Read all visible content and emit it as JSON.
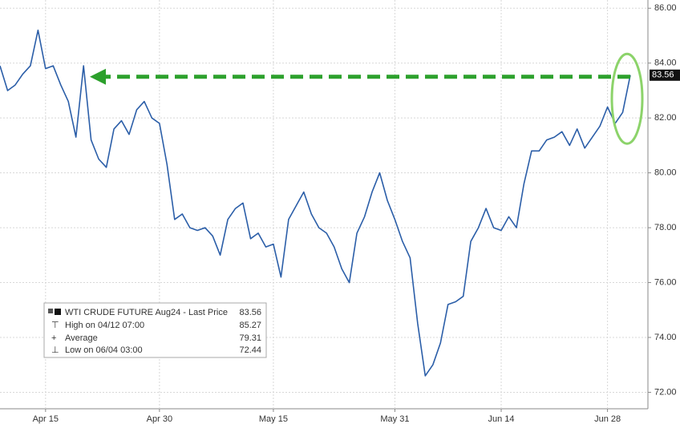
{
  "chart_data": {
    "type": "line",
    "categories": [
      null,
      null,
      null,
      null,
      null,
      null,
      "Apr 15",
      null,
      null,
      null,
      null,
      null,
      null,
      null,
      null,
      null,
      null,
      null,
      null,
      null,
      null,
      "Apr 30",
      null,
      null,
      null,
      null,
      null,
      null,
      null,
      null,
      null,
      null,
      null,
      null,
      null,
      null,
      "May 15",
      null,
      null,
      null,
      null,
      null,
      null,
      null,
      null,
      null,
      null,
      null,
      null,
      null,
      null,
      null,
      "May 31",
      null,
      null,
      null,
      null,
      null,
      null,
      null,
      null,
      null,
      null,
      null,
      null,
      null,
      "Jun 14",
      null,
      null,
      null,
      null,
      null,
      null,
      null,
      null,
      null,
      null,
      null,
      null,
      null,
      "Jun 28",
      null,
      null,
      null
    ],
    "series": [
      {
        "name": "WTI CRUDE FUTURE Aug24 - Last Price",
        "color": "#2b5ea8",
        "values": [
          83.9,
          83.0,
          83.2,
          83.6,
          83.9,
          85.2,
          83.8,
          83.9,
          83.2,
          82.6,
          81.3,
          83.9,
          81.2,
          80.5,
          80.2,
          81.6,
          81.9,
          81.4,
          82.3,
          82.6,
          82.0,
          81.8,
          80.3,
          78.3,
          78.5,
          78.0,
          77.9,
          78.0,
          77.7,
          77.0,
          78.3,
          78.7,
          78.9,
          77.6,
          77.8,
          77.3,
          77.4,
          76.2,
          78.3,
          78.8,
          79.3,
          78.5,
          78.0,
          77.8,
          77.3,
          76.5,
          76.0,
          77.8,
          78.4,
          79.3,
          80.0,
          79.0,
          78.3,
          77.5,
          76.9,
          74.5,
          72.6,
          73.0,
          73.8,
          75.2,
          75.3,
          75.5,
          77.5,
          78.0,
          78.7,
          78.0,
          77.9,
          78.4,
          78.0,
          79.6,
          80.8,
          80.8,
          81.2,
          81.3,
          81.5,
          81.0,
          81.6,
          80.9,
          81.3,
          81.7,
          82.4,
          81.8,
          82.2,
          83.56
        ]
      }
    ],
    "last_value": 83.56,
    "stats": [
      {
        "label": "High on 04/12 07:00",
        "value": 85.27
      },
      {
        "label": "Average",
        "value": 79.31
      },
      {
        "label": "Low on 06/04 03:00",
        "value": 72.44
      }
    ],
    "ylim": [
      71.4,
      86.3
    ],
    "yticks": [
      {
        "value": 72,
        "label": "72.00"
      },
      {
        "value": 74,
        "label": "74.00"
      },
      {
        "value": 76,
        "label": "76.00"
      },
      {
        "value": 78,
        "label": "78.00"
      },
      {
        "value": 80,
        "label": "80.00"
      },
      {
        "value": 82,
        "label": "82.00"
      },
      {
        "value": 84,
        "label": "84.00"
      },
      {
        "value": 86,
        "label": "86.00"
      }
    ],
    "grid": true
  }
}
